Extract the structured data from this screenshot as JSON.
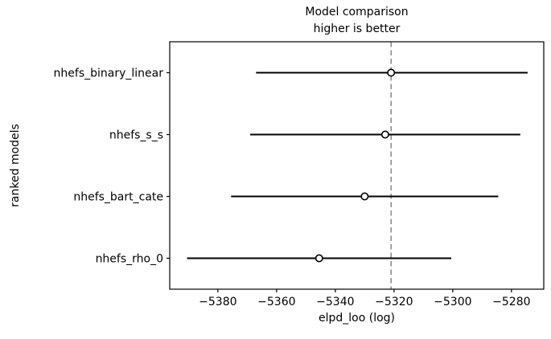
{
  "chart_data": {
    "type": "scatter",
    "orientation": "horizontal",
    "title": "Model comparison",
    "subtitle": "higher is better",
    "xlabel": "elpd_loo (log)",
    "ylabel": "ranked models",
    "categories": [
      "nhefs_binary_linear",
      "nhefs_s_s",
      "nhefs_bart_cate",
      "nhefs_rho_0"
    ],
    "series": [
      {
        "name": "elpd_loo",
        "values": [
          -5321,
          -5323,
          -5330,
          -5345.5
        ],
        "error_low": [
          -5367,
          -5369,
          -5375.5,
          -5390.5
        ],
        "error_high": [
          -5274.5,
          -5277,
          -5284.5,
          -5300.5
        ]
      }
    ],
    "reference_line_x": -5321,
    "xticks": [
      -5380,
      -5360,
      -5340,
      -5320,
      -5300,
      -5280
    ],
    "xtick_labels": [
      "−5380",
      "−5360",
      "−5340",
      "−5320",
      "−5300",
      "−5280"
    ],
    "xlim": [
      -5396.4,
      -5269.0
    ],
    "grid": false,
    "legend": false,
    "marker": "circle-open",
    "colors": {
      "line": "#000000",
      "marker_fill": "#ffffff",
      "marker_edge": "#000000",
      "reference_line": "#808080",
      "text": "#000000",
      "background": "#ffffff"
    }
  }
}
